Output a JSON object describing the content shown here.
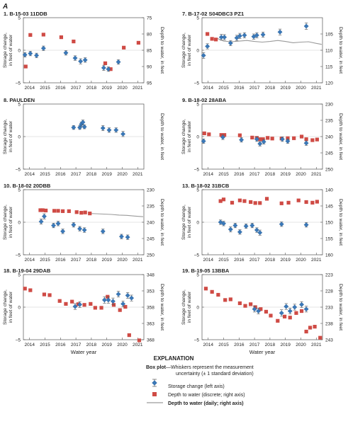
{
  "figure_label": "A",
  "shared": {
    "xlabel": "Water year",
    "ylabel_left": "Storage change, in feet of water",
    "ylabel_right": "Depth to water, in feet",
    "x_ticks": [
      "2014",
      "2015",
      "2016",
      "2017",
      "2018",
      "2019",
      "2020",
      "2021"
    ]
  },
  "explanation": {
    "heading": "EXPLANATION",
    "box_plot_bold": "Box plot",
    "box_plot_line1": "—Whiskers represent the measurement",
    "box_plot_line2": "uncertainty (± 1 standard deviation)",
    "storage_label": "Storage change (left axis)",
    "discrete_label": "Depth to water (discrete; right axis)",
    "daily_label": "Depth to water (daily; right axis)"
  },
  "colors": {
    "storage": "#3a78b8",
    "discrete": "#cf4b45",
    "daily": "#9a9a9a",
    "axis": "#555555"
  },
  "chart_data": [
    {
      "type": "scatter",
      "title": "1. B-15-03 11DDB",
      "ylim": [
        -5,
        5
      ],
      "y2lim": [
        95,
        75
      ],
      "xlim": [
        2013.6,
        2021.4
      ],
      "left_ticks": [
        "5",
        "0",
        "−5"
      ],
      "right_ticks": [
        "75",
        "80",
        "85",
        "90",
        "95"
      ],
      "storage": [
        [
          2013.7,
          -0.7,
          0.35
        ],
        [
          2014.05,
          -0.5,
          0.35
        ],
        [
          2014.45,
          -0.8,
          0.35
        ],
        [
          2014.9,
          0.3,
          0.35
        ],
        [
          2016.35,
          -0.4,
          0.35
        ],
        [
          2016.95,
          -1.2,
          0.35
        ],
        [
          2017.3,
          -1.7,
          0.4
        ],
        [
          2017.6,
          -1.5,
          0.35
        ],
        [
          2018.8,
          -2.7,
          0.4
        ],
        [
          2019.1,
          -2.9,
          0.35
        ],
        [
          2019.75,
          -1.8,
          0.35
        ]
      ],
      "discrete": [
        [
          2013.75,
          90.0
        ],
        [
          2014.05,
          80.3
        ],
        [
          2014.9,
          80.2
        ],
        [
          2016.05,
          81.0
        ],
        [
          2016.85,
          82.3
        ],
        [
          2018.9,
          89.0
        ],
        [
          2019.25,
          90.8
        ],
        [
          2020.1,
          84.2
        ],
        [
          2021.05,
          82.7
        ]
      ],
      "daily": []
    },
    {
      "type": "scatter",
      "title": "7. B-17-02 S04DBC3 PZ1",
      "ylim": [
        -5,
        5
      ],
      "y2lim": [
        120,
        100
      ],
      "xlim": [
        2013.6,
        2021.4
      ],
      "left_ticks": [
        "5",
        "0",
        "−5"
      ],
      "right_ticks": [
        "105",
        "110",
        "115",
        "120"
      ],
      "storage": [
        [
          2013.7,
          -0.8,
          0.45
        ],
        [
          2013.95,
          0.6,
          0.4
        ],
        [
          2014.85,
          2.0,
          0.45
        ],
        [
          2015.05,
          2.0,
          0.4
        ],
        [
          2015.45,
          1.1,
          0.4
        ],
        [
          2015.85,
          1.9,
          0.4
        ],
        [
          2016.05,
          2.2,
          0.4
        ],
        [
          2016.35,
          2.3,
          0.4
        ],
        [
          2016.95,
          2.1,
          0.4
        ],
        [
          2017.15,
          2.3,
          0.4
        ],
        [
          2017.55,
          2.4,
          0.4
        ],
        [
          2018.65,
          2.8,
          0.45
        ],
        [
          2020.35,
          3.7,
          0.5
        ]
      ],
      "discrete": [
        [
          2013.95,
          105.0
        ],
        [
          2014.25,
          106.5
        ],
        [
          2014.5,
          106.7
        ]
      ],
      "daily": [
        [
          2014.6,
          106.4
        ],
        [
          2015.0,
          107.2
        ],
        [
          2015.5,
          107.4
        ],
        [
          2016.0,
          107.2
        ],
        [
          2016.5,
          107.0
        ],
        [
          2017.0,
          107.3
        ],
        [
          2017.5,
          107.5
        ],
        [
          2018.0,
          107.3
        ],
        [
          2018.5,
          107.0
        ],
        [
          2019.0,
          107.3
        ],
        [
          2019.5,
          107.7
        ],
        [
          2020.0,
          107.5
        ],
        [
          2020.5,
          107.4
        ],
        [
          2021.0,
          107.9
        ],
        [
          2021.35,
          108.2
        ]
      ]
    },
    {
      "type": "scatter",
      "title": "8. PAULDEN",
      "ylim": [
        -5,
        5
      ],
      "y2lim": [
        null,
        null
      ],
      "xlim": [
        2013.6,
        2021.4
      ],
      "left_ticks": [
        "5",
        "0",
        "−5"
      ],
      "right_ticks": [],
      "storage": [
        [
          2016.85,
          1.4,
          0.3
        ],
        [
          2017.25,
          1.4,
          0.3
        ],
        [
          2017.35,
          1.9,
          0.35
        ],
        [
          2017.45,
          2.2,
          0.35
        ],
        [
          2017.55,
          1.5,
          0.3
        ],
        [
          2018.75,
          1.3,
          0.4
        ],
        [
          2019.15,
          1.0,
          0.35
        ],
        [
          2019.6,
          1.0,
          0.35
        ],
        [
          2020.05,
          0.4,
          0.4
        ]
      ],
      "discrete": [],
      "daily": []
    },
    {
      "type": "scatter",
      "title": "9. B-18-02 28ABA",
      "ylim": [
        -5,
        5
      ],
      "y2lim": [
        250,
        230
      ],
      "xlim": [
        2013.6,
        2021.4
      ],
      "left_ticks": [
        "5",
        "0",
        "−5"
      ],
      "right_ticks": [
        "230",
        "235",
        "240",
        "245",
        "250"
      ],
      "storage": [
        [
          2013.7,
          -0.7,
          0.35
        ],
        [
          2014.95,
          -0.1,
          0.35
        ],
        [
          2016.15,
          -0.5,
          0.35
        ],
        [
          2017.15,
          -0.4,
          0.35
        ],
        [
          2017.35,
          -1.1,
          0.35
        ],
        [
          2017.6,
          -0.8,
          0.35
        ],
        [
          2018.8,
          -0.4,
          0.35
        ],
        [
          2019.15,
          -0.7,
          0.35
        ],
        [
          2020.35,
          -1.0,
          0.35
        ]
      ],
      "discrete": [
        [
          2013.75,
          239.0
        ],
        [
          2014.05,
          239.3
        ],
        [
          2014.85,
          239.5
        ],
        [
          2015.05,
          239.5
        ],
        [
          2016.05,
          239.6
        ],
        [
          2016.85,
          240.3
        ],
        [
          2017.15,
          240.4
        ],
        [
          2017.35,
          240.8
        ],
        [
          2017.55,
          240.8
        ],
        [
          2017.85,
          240.4
        ],
        [
          2018.15,
          240.6
        ],
        [
          2018.75,
          240.6
        ],
        [
          2019.15,
          240.5
        ],
        [
          2019.55,
          240.5
        ],
        [
          2020.05,
          240.0
        ],
        [
          2020.35,
          240.8
        ],
        [
          2020.75,
          241.1
        ],
        [
          2021.05,
          240.9
        ]
      ],
      "daily": []
    },
    {
      "type": "scatter",
      "title": "10. B-18-02 20DBB",
      "ylim": [
        -5,
        5
      ],
      "y2lim": [
        250,
        230
      ],
      "xlim": [
        2013.6,
        2021.4
      ],
      "left_ticks": [
        "5",
        "0",
        "−5"
      ],
      "right_ticks": [
        "230",
        "235",
        "240",
        "245",
        "250"
      ],
      "storage": [
        [
          2014.75,
          0.1,
          0.4
        ],
        [
          2014.95,
          0.9,
          0.4
        ],
        [
          2015.55,
          -0.5,
          0.35
        ],
        [
          2015.85,
          -0.2,
          0.35
        ],
        [
          2016.15,
          -1.4,
          0.35
        ],
        [
          2016.85,
          -0.4,
          0.35
        ],
        [
          2017.25,
          -1.0,
          0.35
        ],
        [
          2017.55,
          -1.2,
          0.35
        ],
        [
          2018.75,
          -1.4,
          0.35
        ],
        [
          2019.95,
          -2.2,
          0.35
        ],
        [
          2020.35,
          -2.3,
          0.35
        ]
      ],
      "discrete": [
        [
          2014.7,
          236.3
        ],
        [
          2014.85,
          236.3
        ],
        [
          2015.05,
          236.4
        ],
        [
          2015.6,
          236.5
        ],
        [
          2015.85,
          236.5
        ],
        [
          2016.15,
          236.6
        ],
        [
          2016.55,
          236.6
        ],
        [
          2017.05,
          236.9
        ],
        [
          2017.35,
          237.1
        ],
        [
          2017.6,
          237.0
        ],
        [
          2017.9,
          237.3
        ]
      ],
      "daily": [
        [
          2017.9,
          237.3
        ],
        [
          2018.3,
          237.4
        ],
        [
          2018.8,
          237.5
        ],
        [
          2019.3,
          237.6
        ],
        [
          2019.8,
          237.8
        ],
        [
          2020.3,
          237.9
        ],
        [
          2020.8,
          238.1
        ],
        [
          2021.35,
          238.3
        ]
      ]
    },
    {
      "type": "scatter",
      "title": "13. B-18-02 31BCB",
      "ylim": [
        -5,
        5
      ],
      "y2lim": [
        160,
        140
      ],
      "xlim": [
        2013.6,
        2021.4
      ],
      "left_ticks": [
        "5",
        "0",
        "−5"
      ],
      "right_ticks": [
        "140",
        "145",
        "150",
        "155",
        "160"
      ],
      "storage": [
        [
          2014.8,
          0.0,
          0.35
        ],
        [
          2015.0,
          -0.2,
          0.35
        ],
        [
          2015.45,
          -1.1,
          0.4
        ],
        [
          2015.75,
          -0.5,
          0.35
        ],
        [
          2016.05,
          -1.5,
          0.35
        ],
        [
          2016.45,
          -0.6,
          0.35
        ],
        [
          2016.85,
          -0.5,
          0.35
        ],
        [
          2017.15,
          -1.2,
          0.35
        ],
        [
          2017.35,
          -1.6,
          0.4
        ],
        [
          2018.75,
          -0.3,
          0.35
        ],
        [
          2020.35,
          -0.4,
          0.35
        ]
      ],
      "discrete": [
        [
          2014.8,
          143.5
        ],
        [
          2015.0,
          143.0
        ],
        [
          2015.55,
          144.0
        ],
        [
          2016.05,
          143.3
        ],
        [
          2016.35,
          143.5
        ],
        [
          2016.75,
          143.8
        ],
        [
          2017.05,
          144.1
        ],
        [
          2017.35,
          144.1
        ],
        [
          2017.8,
          142.8
        ],
        [
          2018.75,
          144.2
        ],
        [
          2019.2,
          144.0
        ],
        [
          2019.85,
          143.3
        ],
        [
          2020.35,
          143.8
        ],
        [
          2020.75,
          144.0
        ],
        [
          2021.05,
          143.7
        ]
      ],
      "daily": []
    },
    {
      "type": "scatter",
      "title": "18. B-19-04 29DAB",
      "ylim": [
        -5,
        5
      ],
      "y2lim": [
        368,
        348
      ],
      "xlim": [
        2013.6,
        2021.4
      ],
      "left_ticks": [
        "5",
        "0",
        "−5"
      ],
      "right_ticks": [
        "348",
        "353",
        "358",
        "363",
        "368"
      ],
      "storage": [
        [
          2016.95,
          0.1,
          0.45
        ],
        [
          2017.25,
          0.4,
          0.45
        ],
        [
          2018.85,
          1.1,
          0.5
        ],
        [
          2019.1,
          1.1,
          0.5
        ],
        [
          2019.4,
          0.9,
          0.5
        ],
        [
          2019.75,
          2.0,
          0.45
        ],
        [
          2020.05,
          0.5,
          0.45
        ],
        [
          2020.35,
          1.8,
          0.45
        ],
        [
          2020.6,
          1.4,
          0.45
        ]
      ],
      "discrete": [
        [
          2013.7,
          352.3
        ],
        [
          2014.05,
          352.8
        ],
        [
          2014.95,
          354.1
        ],
        [
          2015.3,
          354.3
        ],
        [
          2015.95,
          356.1
        ],
        [
          2016.35,
          357.0
        ],
        [
          2016.75,
          356.3
        ],
        [
          2017.15,
          357.1
        ],
        [
          2017.55,
          357.3
        ],
        [
          2017.95,
          357.0
        ],
        [
          2018.25,
          358.2
        ],
        [
          2018.65,
          358.2
        ],
        [
          2019.05,
          354.8
        ],
        [
          2019.45,
          357.3
        ],
        [
          2019.85,
          358.9
        ],
        [
          2020.2,
          357.9
        ],
        [
          2020.45,
          366.6
        ],
        [
          2021.1,
          368.2
        ]
      ],
      "daily": []
    },
    {
      "type": "scatter",
      "title": "19. B-19-05 13BBA",
      "ylim": [
        -5,
        5
      ],
      "y2lim": [
        243,
        223
      ],
      "xlim": [
        2013.6,
        2021.4
      ],
      "left_ticks": [
        "5",
        "0",
        "−5"
      ],
      "right_ticks": [
        "223",
        "228",
        "233",
        "238",
        "243"
      ],
      "storage": [
        [
          2017.0,
          -0.3,
          0.45
        ],
        [
          2017.25,
          -0.6,
          0.45
        ],
        [
          2018.75,
          -0.9,
          0.5
        ],
        [
          2019.05,
          0.1,
          0.45
        ],
        [
          2019.3,
          -0.6,
          0.45
        ],
        [
          2019.6,
          0.0,
          0.45
        ],
        [
          2020.05,
          0.4,
          0.45
        ],
        [
          2020.35,
          -0.3,
          0.45
        ]
      ],
      "discrete": [
        [
          2013.85,
          227.3
        ],
        [
          2014.25,
          228.3
        ],
        [
          2014.65,
          229.2
        ],
        [
          2015.1,
          230.8
        ],
        [
          2015.45,
          230.6
        ],
        [
          2016.05,
          231.8
        ],
        [
          2016.4,
          232.6
        ],
        [
          2016.75,
          232.1
        ],
        [
          2017.05,
          233.0
        ],
        [
          2017.4,
          233.6
        ],
        [
          2017.75,
          234.4
        ],
        [
          2018.05,
          235.6
        ],
        [
          2018.5,
          237.2
        ],
        [
          2018.95,
          235.9
        ],
        [
          2019.3,
          236.2
        ],
        [
          2019.7,
          234.8
        ],
        [
          2020.05,
          234.2
        ],
        [
          2020.35,
          240.5
        ],
        [
          2020.6,
          239.3
        ],
        [
          2020.9,
          239.0
        ],
        [
          2021.25,
          242.4
        ]
      ],
      "daily": []
    }
  ]
}
